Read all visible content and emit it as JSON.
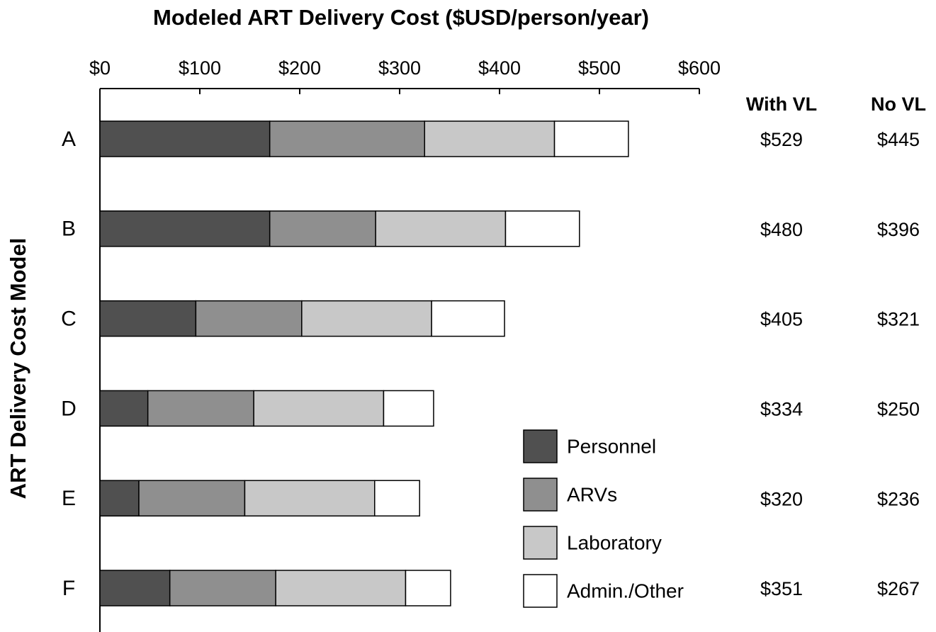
{
  "chart_data": {
    "type": "stacked_barh",
    "title": "Modeled ART Delivery Cost ($USD/person/year)",
    "ylabel": "ART Delivery Cost Model",
    "categories": [
      "A",
      "B",
      "C",
      "D",
      "E",
      "F"
    ],
    "series": [
      {
        "name": "Personnel",
        "color": "#505050",
        "values": [
          170,
          170,
          96,
          48,
          39,
          70
        ]
      },
      {
        "name": "ARVs",
        "color": "#8f8f8f",
        "values": [
          155,
          106,
          106,
          106,
          106,
          106
        ]
      },
      {
        "name": "Laboratory",
        "color": "#c8c8c8",
        "values": [
          130,
          130,
          130,
          130,
          130,
          130
        ]
      },
      {
        "name": "Admin./Other",
        "color": "#ffffff",
        "values": [
          74,
          74,
          73,
          50,
          45,
          45
        ]
      }
    ],
    "xlim": [
      0,
      600
    ],
    "xticks": [
      {
        "value": 0,
        "label": "$0"
      },
      {
        "value": 100,
        "label": "$100"
      },
      {
        "value": 200,
        "label": "$200"
      },
      {
        "value": 300,
        "label": "$300"
      },
      {
        "value": 400,
        "label": "$400"
      },
      {
        "value": 500,
        "label": "$500"
      },
      {
        "value": 600,
        "label": "$600"
      }
    ],
    "table": {
      "headers": [
        "With VL",
        "No VL"
      ],
      "rows": [
        [
          "$529",
          "$445"
        ],
        [
          "$480",
          "$396"
        ],
        [
          "$405",
          "$321"
        ],
        [
          "$334",
          "$250"
        ],
        [
          "$320",
          "$236"
        ],
        [
          "$351",
          "$267"
        ]
      ]
    }
  }
}
